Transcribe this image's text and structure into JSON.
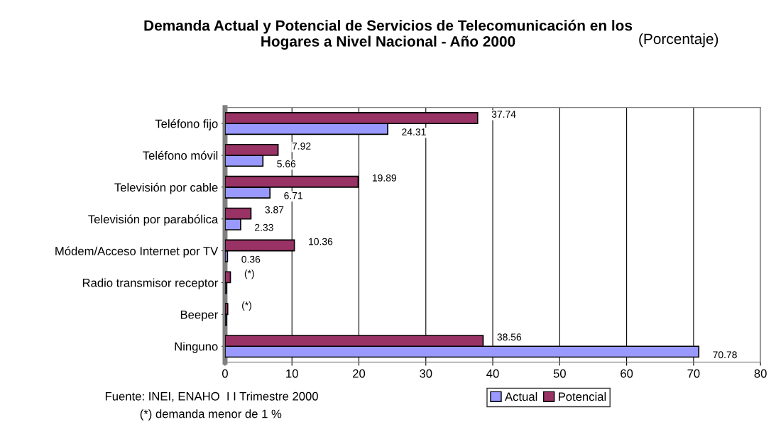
{
  "chart_data": {
    "type": "bar",
    "orientation": "horizontal",
    "title": "Demanda Actual y Potencial de Servicios de Telecomunicación en los\nHogares a Nivel Nacional - Año 2000",
    "subtitle": "(Porcentaje)",
    "categories": [
      "Teléfono fijo",
      "Teléfono móvil",
      "Televisión por cable",
      "Televisión por parabólica",
      "Módem/Acceso Internet por TV",
      "Radio transmisor receptor",
      "Beeper",
      "Ninguno"
    ],
    "series": [
      {
        "name": "Actual",
        "color": "#9999ff",
        "values": [
          24.31,
          5.66,
          6.71,
          2.33,
          0.36,
          0.2,
          0.2,
          70.78
        ],
        "value_labels": [
          "24.31",
          "5.66",
          "6.71",
          "2.33",
          "0.36",
          null,
          null,
          "70.78"
        ]
      },
      {
        "name": "Potencial",
        "color": "#993366",
        "values": [
          37.74,
          7.92,
          19.89,
          3.87,
          10.36,
          0.8,
          0.4,
          38.56
        ],
        "value_labels": [
          "37.74",
          "7.92",
          "19.89",
          "3.87",
          "10.36",
          "(*)",
          "(*)",
          "38.56"
        ]
      }
    ],
    "xlim": [
      0,
      80
    ],
    "xticks": [
      0,
      10,
      20,
      30,
      40,
      50,
      60,
      70,
      80
    ],
    "grid": "x",
    "legend": "bottom right",
    "annotations": [
      "Fuente: INEI, ENAHO  I I Trimestre 2000",
      "(*) demanda menor de 1 %"
    ]
  }
}
